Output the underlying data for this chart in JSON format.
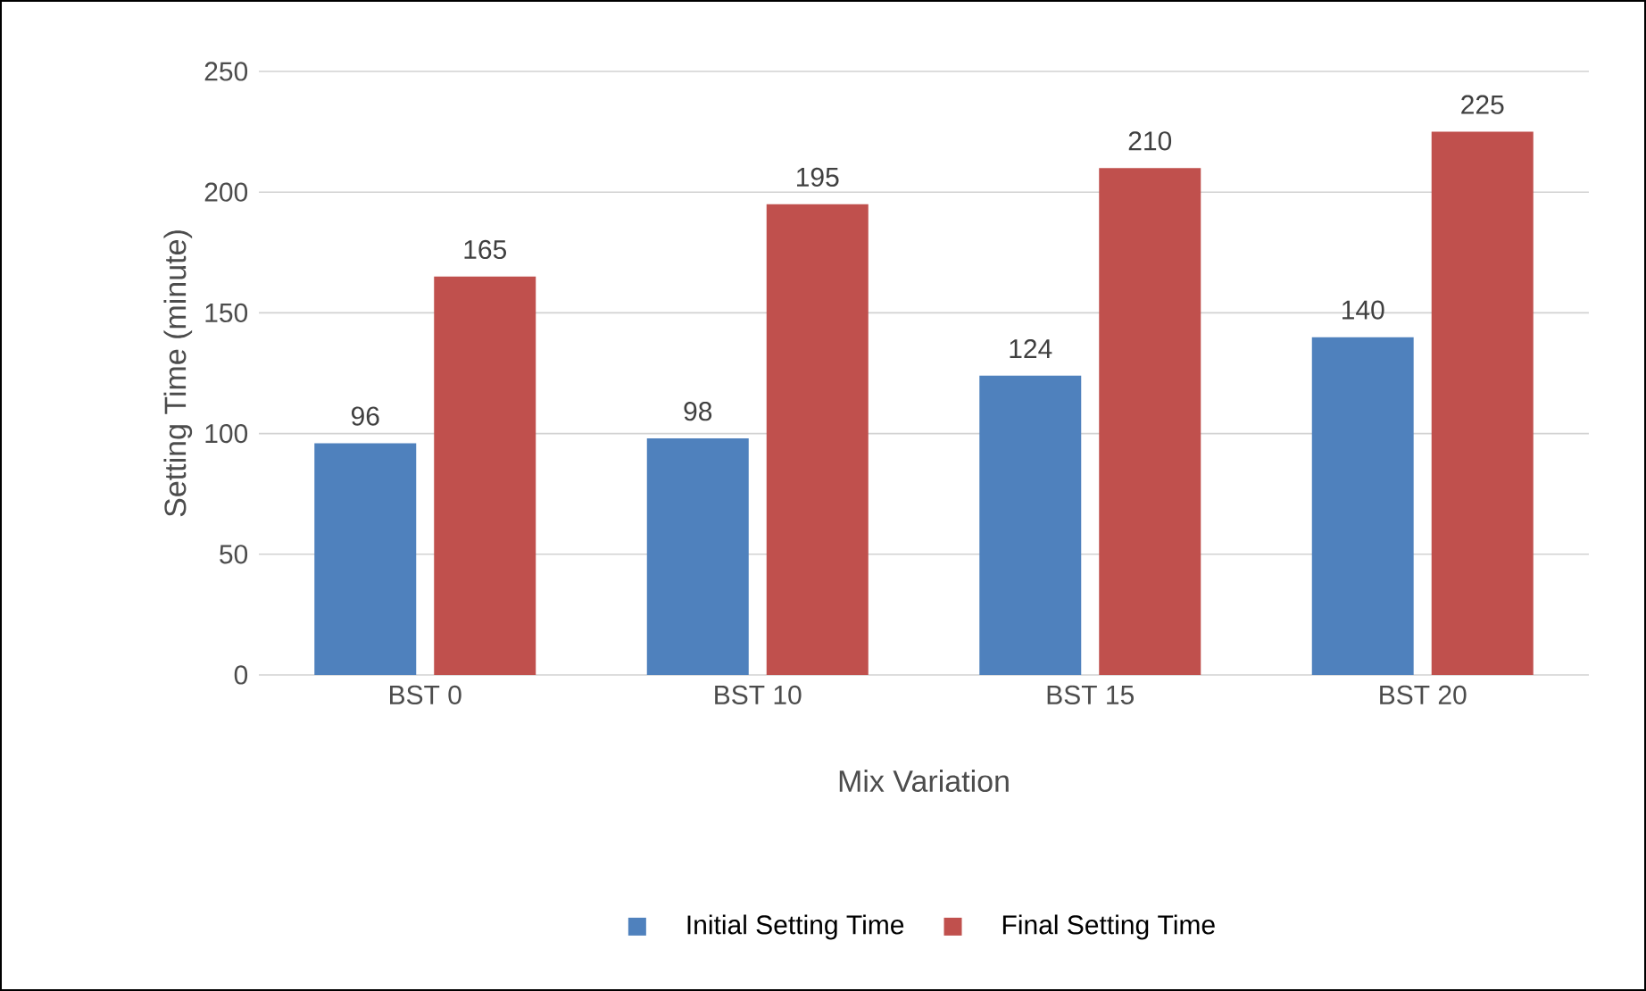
{
  "chart_data": {
    "type": "bar",
    "xlabel": "Mix Variation",
    "ylabel": "Setting Time (minute)",
    "categories": [
      "BST 0",
      "BST 10",
      "BST 15",
      "BST 20"
    ],
    "series": [
      {
        "name": "Initial Setting Time",
        "color": "#4f81bd",
        "values": [
          96,
          98,
          124,
          140
        ]
      },
      {
        "name": "Final Setting Time",
        "color": "#c0504d",
        "values": [
          165,
          195,
          210,
          225
        ]
      }
    ],
    "ylim": [
      0,
      250
    ],
    "yticks": [
      0,
      50,
      100,
      150,
      200,
      250
    ],
    "grid": "y",
    "legend": "bottom",
    "data_labels": true
  }
}
